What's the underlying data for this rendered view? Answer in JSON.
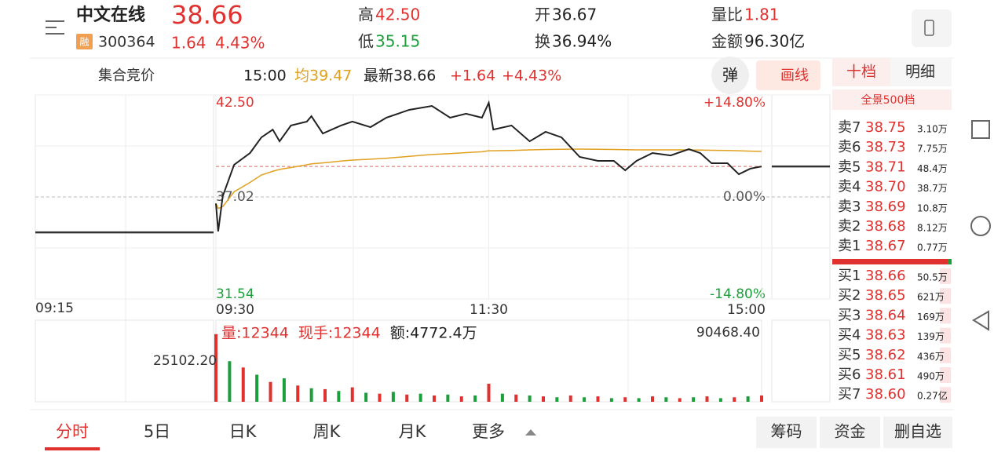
{
  "header": {
    "name": "中文在线",
    "price": "38.66",
    "badge": "融",
    "code": "300364",
    "change": "1.64",
    "change_pct": "4.43%",
    "stats": [
      {
        "label": "高",
        "value": "42.50",
        "color": "#e0312f"
      },
      {
        "label": "低",
        "value": "35.15",
        "color": "#1a9f3a"
      },
      {
        "label": "开",
        "value": "36.67",
        "color": "#222222"
      },
      {
        "label": "换",
        "value": "36.94%",
        "color": "#222222"
      },
      {
        "label": "量比",
        "value": "1.81",
        "color": "#e0312f"
      },
      {
        "label": "金额",
        "value": "96.30亿",
        "color": "#222222"
      }
    ]
  },
  "toolbar": {
    "phase": "集合竞价",
    "time": "15:00",
    "avg": "均39.47",
    "latest": "最新38.66",
    "change": "+1.64",
    "change_pct": "+4.43%",
    "popup_button": "弹",
    "draw_button": "画线"
  },
  "chart_data": {
    "type": "line",
    "x": [
      0,
      1,
      3,
      8,
      15,
      20,
      25,
      28,
      33,
      40,
      42,
      47,
      55,
      60,
      68,
      75,
      85,
      95,
      103,
      110,
      117,
      120,
      122,
      130,
      138,
      145,
      152,
      160,
      168,
      175,
      180,
      185,
      192,
      200,
      208,
      213,
      218,
      225,
      230,
      235,
      240
    ],
    "series": [
      {
        "color": "#222222",
        "values": [
          36.67,
          35.17,
          37.06,
          38.75,
          39.38,
          40.22,
          40.64,
          40.01,
          40.86,
          41.07,
          41.36,
          40.43,
          40.86,
          41.07,
          40.77,
          41.28,
          41.7,
          41.91,
          41.28,
          41.49,
          41.28,
          42.08,
          40.64,
          40.86,
          40.01,
          40.52,
          40.22,
          39.17,
          38.96,
          38.96,
          38.45,
          38.96,
          39.38,
          39.25,
          39.59,
          39.38,
          38.83,
          38.83,
          38.24,
          38.54,
          38.66
        ]
      },
      {
        "color": "#e0a020",
        "values": [
          36.67,
          36.4,
          36.5,
          37.3,
          37.8,
          38.2,
          38.4,
          38.5,
          38.6,
          38.75,
          38.8,
          38.85,
          38.95,
          39.0,
          39.05,
          39.1,
          39.2,
          39.3,
          39.35,
          39.4,
          39.45,
          39.5,
          39.5,
          39.52,
          39.55,
          39.57,
          39.58,
          39.59,
          39.58,
          39.57,
          39.56,
          39.55,
          39.55,
          39.55,
          39.55,
          39.54,
          39.53,
          39.52,
          39.5,
          39.48,
          39.47
        ]
      }
    ],
    "xlim": [
      0,
      240
    ],
    "xticks": [
      {
        "value": 0,
        "label": "09:30"
      },
      {
        "value": 120,
        "label": "11:30"
      },
      {
        "value": 240,
        "label": "15:00"
      }
    ],
    "ylim": [
      31.54,
      42.5
    ],
    "yticks": [
      {
        "value": 42.5,
        "label": "42.50"
      },
      37.02,
      {
        "value": 31.54,
        "label": "31.54"
      }
    ],
    "y2lim": [
      -14.8,
      14.8
    ],
    "y2ticks": [
      {
        "value": 14.8,
        "label": "+14.80%"
      },
      {
        "value": 0,
        "label": "0.00%"
      },
      {
        "value": -14.8,
        "label": "-14.80%"
      }
    ],
    "pre_open_time": "09:15",
    "auction_price": 35.12,
    "after_close_price": 38.66,
    "volume": {
      "x": [
        0,
        6,
        12,
        18,
        24,
        30,
        36,
        42,
        48,
        54,
        60,
        66,
        72,
        78,
        84,
        90,
        96,
        102,
        108,
        114,
        120,
        126,
        132,
        138,
        144,
        150,
        156,
        162,
        168,
        174,
        180,
        186,
        192,
        198,
        204,
        210,
        216,
        222,
        228,
        234,
        240
      ],
      "values": [
        75000,
        45000,
        38000,
        30000,
        22000,
        26000,
        18000,
        15000,
        14000,
        12000,
        16000,
        10000,
        9000,
        11000,
        8000,
        9000,
        7000,
        8000,
        6000,
        7000,
        20000,
        9000,
        8000,
        7000,
        6000,
        5000,
        7000,
        5000,
        6000,
        4000,
        5000,
        4000,
        6000,
        5000,
        4000,
        5000,
        6000,
        4000,
        5000,
        6000,
        7000
      ],
      "ylim": [
        0,
        90468.4
      ],
      "yticks": [
        {
          "value": 90468.4,
          "label": "90468.40"
        }
      ],
      "auction_max": "25102.20",
      "info": [
        "量:12344",
        "现手:12344",
        "额:4772.4万"
      ]
    }
  },
  "order_book": {
    "tabs": [
      "十档",
      "明细"
    ],
    "header": "全景500档",
    "asks": [
      [
        "卖7",
        "38.75",
        "3.10万"
      ],
      [
        "卖6",
        "38.73",
        "7.75万"
      ],
      [
        "卖5",
        "38.71",
        "48.4万"
      ],
      [
        "卖4",
        "38.70",
        "38.7万"
      ],
      [
        "卖3",
        "38.69",
        "10.8万"
      ],
      [
        "卖2",
        "38.68",
        "8.12万"
      ],
      [
        "卖1",
        "38.67",
        "0.77万"
      ]
    ],
    "bids": [
      [
        "买1",
        "38.66",
        "50.5万"
      ],
      [
        "买2",
        "38.65",
        "621万"
      ],
      [
        "买3",
        "38.64",
        "169万"
      ],
      [
        "买4",
        "38.63",
        "139万"
      ],
      [
        "买5",
        "38.62",
        "436万"
      ],
      [
        "买6",
        "38.61",
        "490万"
      ],
      [
        "买7",
        "38.60",
        "0.27亿"
      ]
    ]
  },
  "bottom_tabs": [
    "分时",
    "5日",
    "日K",
    "周K",
    "月K",
    "更多"
  ],
  "actions": [
    "筹码",
    "资金",
    "删自选"
  ]
}
